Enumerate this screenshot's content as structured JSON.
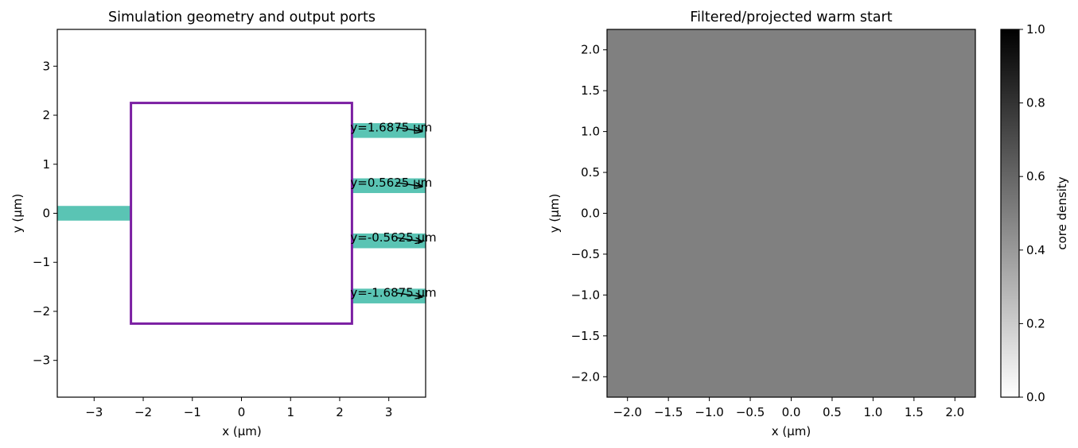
{
  "chart_data": [
    {
      "type": "scatter",
      "title": "Simulation geometry and output ports",
      "xlabel": "x (µm)",
      "ylabel": "y (µm)",
      "xlim": [
        -3.75,
        3.75
      ],
      "ylim": [
        -3.75,
        3.75
      ],
      "xticks": [
        -3,
        -2,
        -1,
        0,
        1,
        2,
        3
      ],
      "yticks": [
        -3,
        -2,
        -1,
        0,
        1,
        2,
        3
      ],
      "xtick_labels": [
        "−3",
        "−2",
        "−1",
        "0",
        "1",
        "2",
        "3"
      ],
      "ytick_labels": [
        "−3",
        "−2",
        "−1",
        "0",
        "1",
        "2",
        "3"
      ],
      "grid": false,
      "design_region": {
        "x": [
          -2.25,
          2.25
        ],
        "y": [
          -2.25,
          2.25
        ],
        "color": "#7b1fa2"
      },
      "input_waveguide": {
        "x": [
          -3.75,
          -2.25
        ],
        "y_center": 0,
        "width": 0.3,
        "color": "#5ac4b4"
      },
      "output_ports": [
        {
          "y": 1.6875,
          "label": "y=1.6875 µm"
        },
        {
          "y": 0.5625,
          "label": "y=0.5625 µm"
        },
        {
          "y": -0.5625,
          "label": "y=-0.5625 µm"
        },
        {
          "y": -1.6875,
          "label": "y=-1.6875 µm"
        }
      ],
      "output_waveguide": {
        "x": [
          2.25,
          3.75
        ],
        "width": 0.3,
        "color": "#5ac4b4"
      }
    },
    {
      "type": "heatmap",
      "title": "Filtered/projected warm start",
      "xlabel": "x (µm)",
      "ylabel": "y (µm)",
      "xlim": [
        -2.25,
        2.25
      ],
      "ylim": [
        -2.25,
        2.25
      ],
      "xticks": [
        -2.0,
        -1.5,
        -1.0,
        -0.5,
        0.0,
        0.5,
        1.0,
        1.5,
        2.0
      ],
      "yticks": [
        -2.0,
        -1.5,
        -1.0,
        -0.5,
        0.0,
        0.5,
        1.0,
        1.5,
        2.0
      ],
      "xtick_labels": [
        "−2.0",
        "−1.5",
        "−1.0",
        "−0.5",
        "0.0",
        "0.5",
        "1.0",
        "1.5",
        "2.0"
      ],
      "ytick_labels": [
        "−2.0",
        "−1.5",
        "−1.0",
        "−0.5",
        "0.0",
        "0.5",
        "1.0",
        "1.5",
        "2.0"
      ],
      "value": 0.5,
      "colormap": "gray_r",
      "colorbar": {
        "label": "core density",
        "range": [
          0.0,
          1.0
        ],
        "ticks": [
          0.0,
          0.2,
          0.4,
          0.6,
          0.8,
          1.0
        ],
        "tick_labels": [
          "0.0",
          "0.2",
          "0.4",
          "0.6",
          "0.8",
          "1.0"
        ]
      }
    }
  ]
}
